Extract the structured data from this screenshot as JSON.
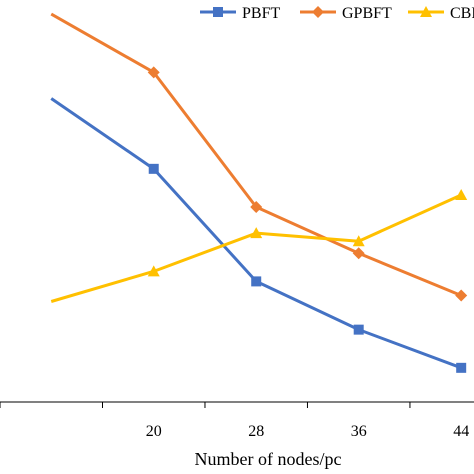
{
  "chart_data": {
    "type": "line",
    "xlabel": "Number of nodes/pc",
    "ylabel": "",
    "title": "",
    "x": [
      12,
      20,
      28,
      36,
      44
    ],
    "tick_labels": [
      "20",
      "28",
      "36",
      "44"
    ],
    "xlim": [
      8,
      45
    ],
    "ylim": [
      0,
      100
    ],
    "grid": false,
    "legend_position": "top-right",
    "series": [
      {
        "name": "PBFT",
        "color": "#4472C4",
        "marker": "square",
        "values": [
          75.5,
          58,
          30,
          18,
          8.5
        ]
      },
      {
        "name": "GPBFT",
        "color": "#ED7D31",
        "marker": "diamond",
        "values": [
          96.5,
          82,
          48.5,
          37,
          26.5
        ]
      },
      {
        "name": "CBFT",
        "color": "#FFC000",
        "marker": "triangle",
        "values": [
          25,
          32.5,
          42,
          40,
          51.5
        ]
      }
    ]
  }
}
